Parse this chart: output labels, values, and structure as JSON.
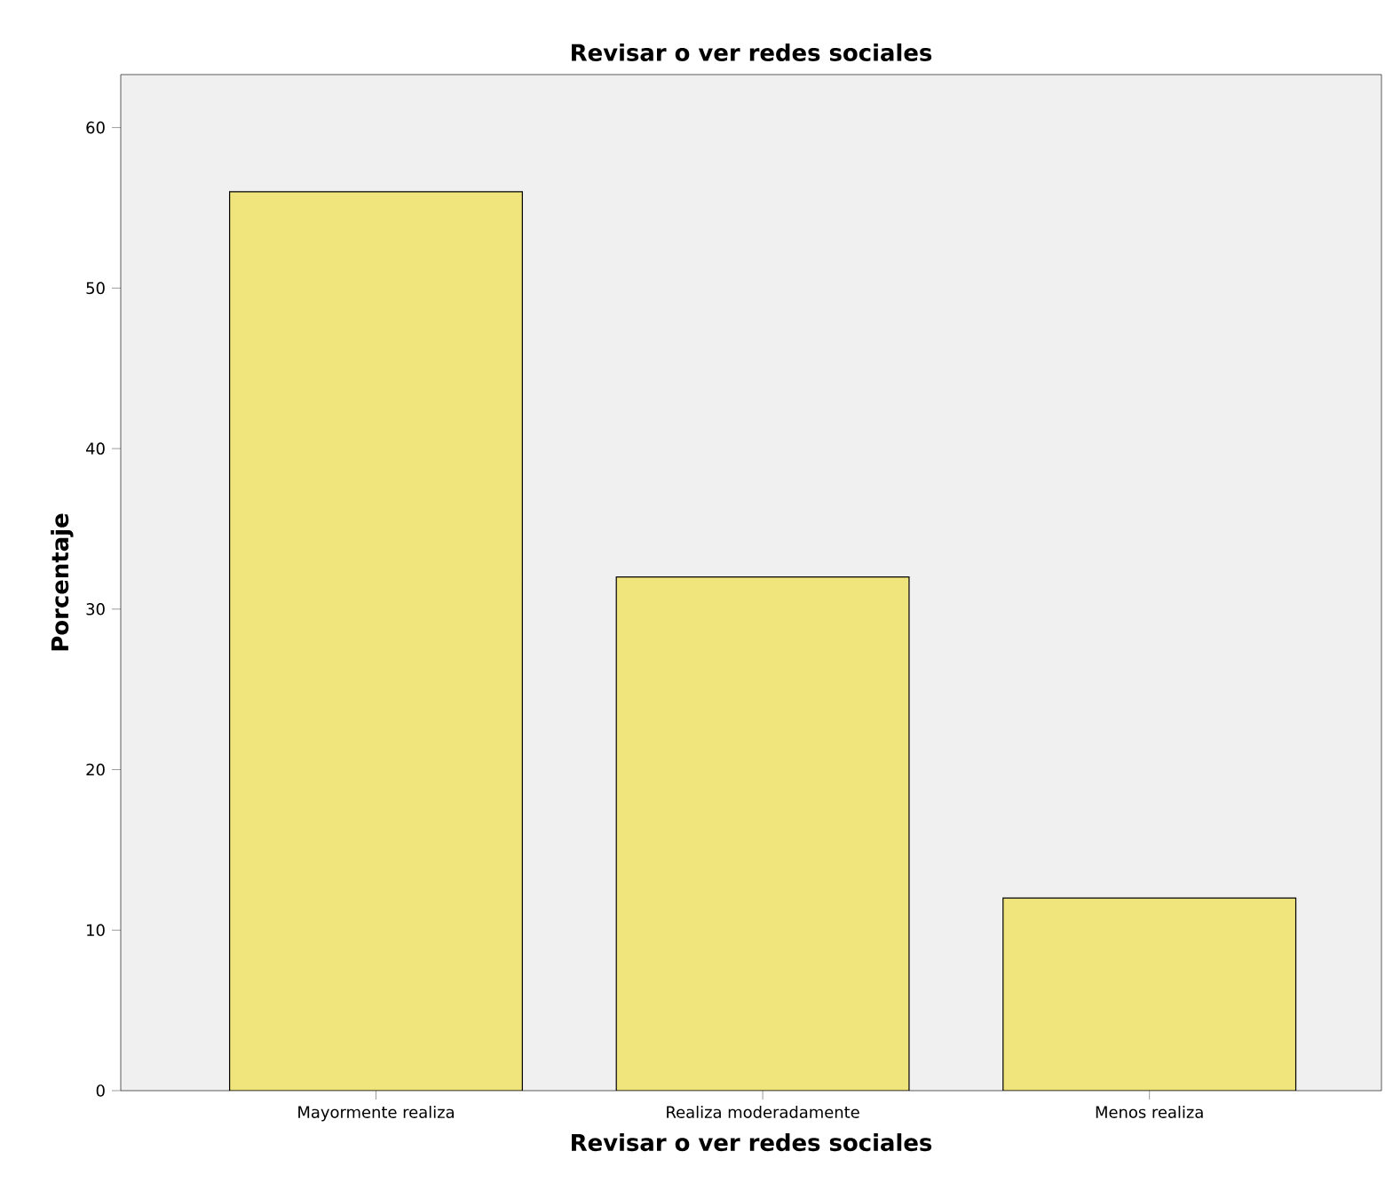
{
  "chart_data": {
    "type": "bar",
    "title": "Revisar o ver redes sociales",
    "xlabel": "Revisar o ver redes sociales",
    "ylabel": "Porcentaje",
    "categories": [
      "Mayormente realiza",
      "Realiza moderadamente",
      "Menos realiza"
    ],
    "values": [
      56,
      32,
      12
    ],
    "color": "#f0e47c",
    "ylim": [
      0,
      63.3
    ],
    "yticks": [
      0,
      10,
      20,
      30,
      40,
      50,
      60
    ]
  }
}
